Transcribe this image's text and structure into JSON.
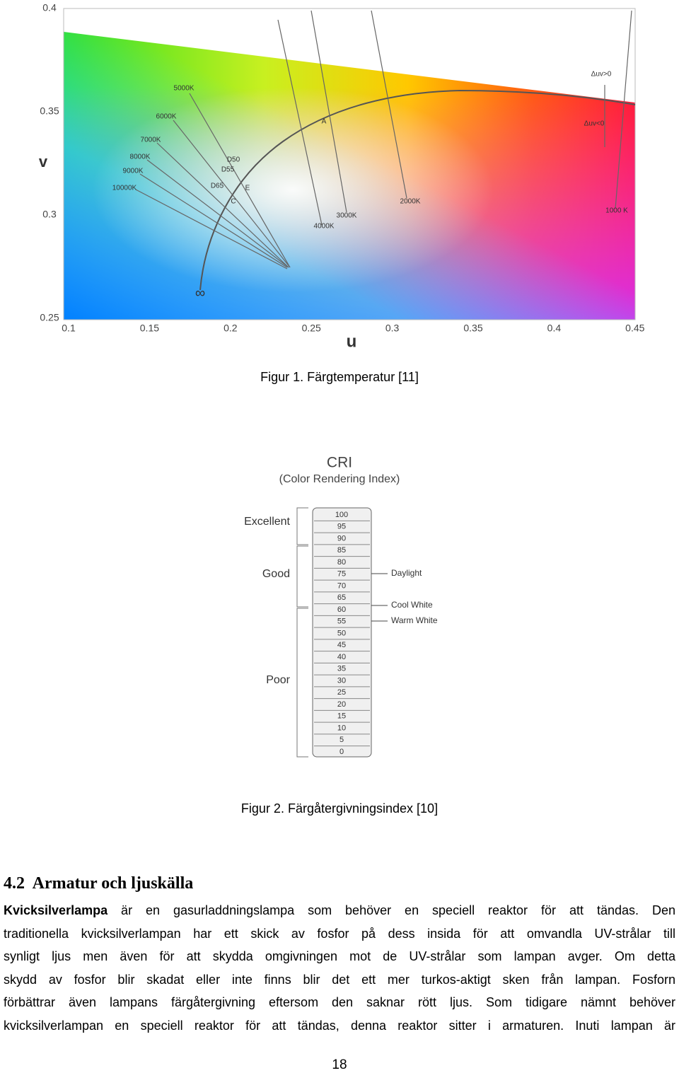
{
  "figure1": {
    "x_axis_label": "u",
    "y_axis_label": "v",
    "x_ticks": [
      "0.1",
      "0.15",
      "0.2",
      "0.25",
      "0.3",
      "0.35",
      "0.4",
      "0.45"
    ],
    "y_ticks": [
      "0.4",
      "0.35",
      "0.3",
      "0.25"
    ],
    "annotations": [
      "5000K",
      "6000K",
      "7000K",
      "8000K",
      "9000K",
      "10000K",
      "D50",
      "D55",
      "D65",
      "E",
      "C",
      "A",
      "4000K",
      "3000K",
      "2000K",
      "1000 K",
      "∞",
      "Δuv>0",
      "Δuv<0"
    ],
    "caption": "Figur 1. Färgtemperatur [11]"
  },
  "figure2": {
    "title": "CRI",
    "subtitle": "(Color Rendering Index)",
    "ranges": [
      "Excellent",
      "Good",
      "Poor"
    ],
    "scale": [
      "100",
      "95",
      "90",
      "85",
      "80",
      "75",
      "70",
      "65",
      "60",
      "55",
      "50",
      "45",
      "40",
      "35",
      "30",
      "25",
      "20",
      "15",
      "10",
      "5",
      "0"
    ],
    "markers": [
      "Daylight",
      "Cool White",
      "Warm White"
    ],
    "caption": "Figur 2. Färgåtergivningsindex [10]"
  },
  "section": {
    "heading": "4.2  Armatur och ljuskälla",
    "lead": "Kvicksilverlampa",
    "lines": [
      " är en gasurladdningslampa som behöver en speciell reaktor för att tändas. Den",
      "traditionella kvicksilverlampan har ett skick av fosfor på dess insida för att omvandla UV-strålar till",
      "synligt ljus men även för att skydda omgivningen mot de UV-strålar som lampan avger.  Om detta",
      "skydd av fosfor blir skadat eller inte finns blir det ett mer turkos-aktigt sken från lampan. Fosforn",
      "förbättrar även lampans färgåtergivning eftersom den saknar rött ljus. Som tidigare nämnt behöver",
      "kvicksilverlampan en speciell reaktor för att tändas, denna reaktor sitter i armaturen. Inuti lampan är"
    ]
  },
  "page_number": "18"
}
